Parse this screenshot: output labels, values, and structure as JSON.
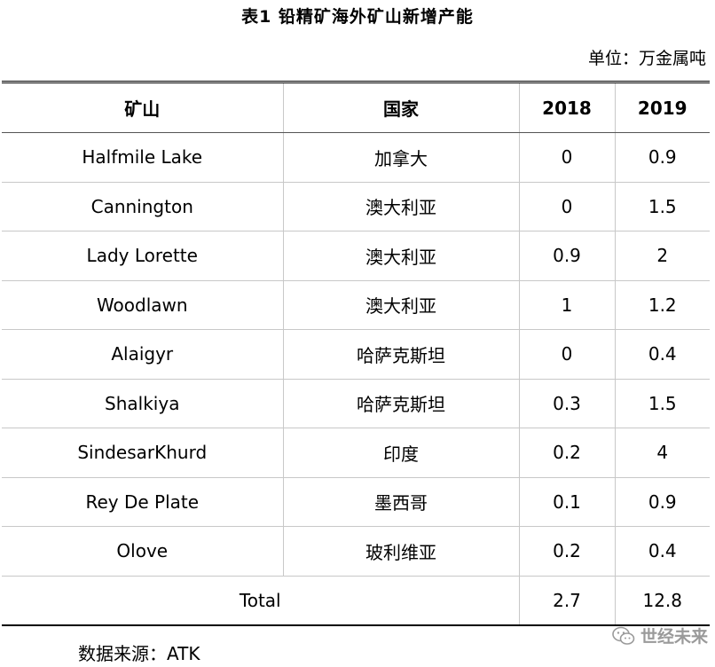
{
  "title": "表1   铅精矿海外矿山新增产能",
  "unit": "单位：万金属吨",
  "headers": [
    "矿山",
    "国家",
    "2018",
    "2019"
  ],
  "rows": [
    {
      "mine": "Halfmile Lake",
      "country": "加拿大",
      "y2018": "0",
      "y2019": "0.9"
    },
    {
      "mine": "Cannington",
      "country": "澳大利亚",
      "y2018": "0",
      "y2019": "1.5"
    },
    {
      "mine": "Lady Lorette",
      "country": "澳大利亚",
      "y2018": "0.9",
      "y2019": "2"
    },
    {
      "mine": "Woodlawn",
      "country": "澳大利亚",
      "y2018": "1",
      "y2019": "1.2"
    },
    {
      "mine": "Alaigyr",
      "country": "哈萨克斯坦",
      "y2018": "0",
      "y2019": "0.4"
    },
    {
      "mine": "Shalkiya",
      "country": "哈萨克斯坦",
      "y2018": "0.3",
      "y2019": "1.5"
    },
    {
      "mine": "SindesarKhurd",
      "country": "印度",
      "y2018": "0.2",
      "y2019": "4"
    },
    {
      "mine": "Rey De Plate",
      "country": "墨西哥",
      "y2018": "0.1",
      "y2019": "0.9"
    },
    {
      "mine": "Olove",
      "country": "玻利维亚",
      "y2018": "0.2",
      "y2019": "0.4"
    }
  ],
  "total": {
    "label": "Total",
    "y2018": "2.7",
    "y2019": "12.8"
  },
  "source": "数据来源：ATK",
  "watermark": {
    "text": "世经未来",
    "icon": "wechat-icon"
  }
}
